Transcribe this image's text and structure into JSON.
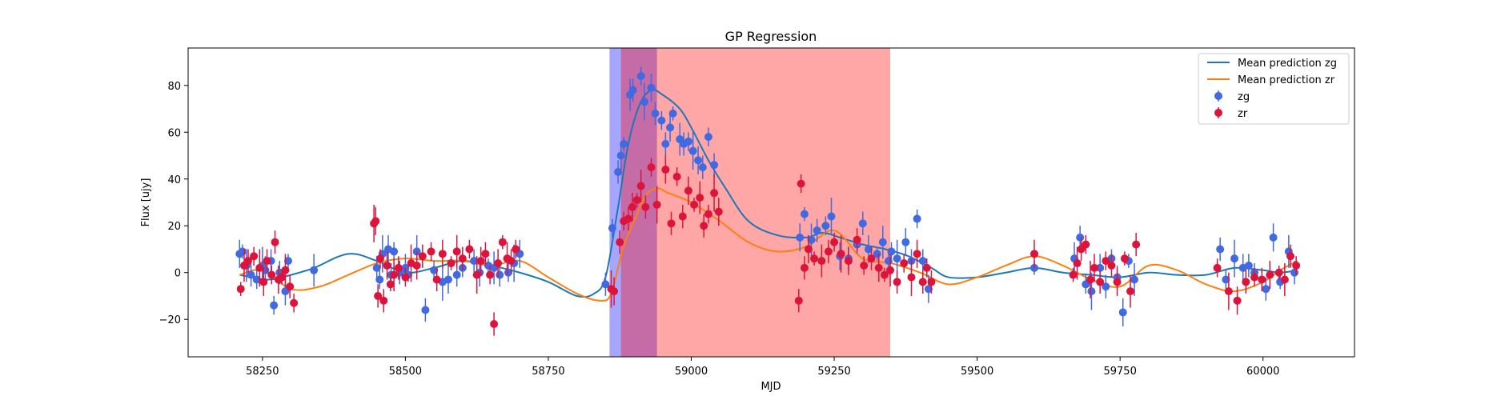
{
  "chart_data": {
    "type": "scatter",
    "title": "GP Regression",
    "xlabel": "MJD",
    "ylabel": "Flux [ujy]",
    "xlim": [
      58120,
      60160
    ],
    "ylim": [
      -36,
      96
    ],
    "xticks": [
      58250,
      58500,
      58750,
      59000,
      59250,
      59500,
      59750,
      60000
    ],
    "yticks": [
      -20,
      0,
      20,
      40,
      60,
      80
    ],
    "grid": false,
    "legend_position": "top-right",
    "colors": {
      "zg_line": "#1f77b4",
      "zr_line": "#ff7f0e",
      "zg_points": "#4169e1",
      "zr_points": "#dc143c",
      "span_blue": "#0000ff",
      "span_red": "#ff0000",
      "span_overlap": "#c06090"
    },
    "shaded_regions": [
      {
        "x0": 58857,
        "x1": 58940,
        "color": "#0000ff",
        "alpha": 0.35
      },
      {
        "x0": 58877,
        "x1": 59348,
        "color": "#ff0000",
        "alpha": 0.35
      }
    ],
    "series": [
      {
        "name": "Mean prediction zg",
        "kind": "line",
        "color": "#1f77b4",
        "x": [
          58210,
          58260,
          58300,
          58340,
          58400,
          58450,
          58500,
          58550,
          58600,
          58650,
          58700,
          58750,
          58800,
          58830,
          58850,
          58870,
          58890,
          58910,
          58930,
          58950,
          58980,
          59000,
          59030,
          59060,
          59100,
          59150,
          59200,
          59230,
          59260,
          59300,
          59340,
          59380,
          59420,
          59450,
          59500,
          59550,
          59600,
          59650,
          59700,
          59750,
          59800,
          59850,
          59900,
          59950,
          60000,
          60030,
          60060
        ],
        "y": [
          -1,
          -3,
          -1,
          2,
          8,
          5,
          0,
          2,
          5,
          3,
          0,
          -4,
          -10,
          -9,
          -2,
          25,
          55,
          72,
          78,
          76,
          70,
          62,
          48,
          36,
          22,
          16,
          15,
          17,
          15,
          12,
          10,
          7,
          2,
          -2,
          -2,
          0,
          2,
          0,
          -1,
          -2,
          0,
          -1,
          -1,
          2,
          1,
          0,
          1
        ]
      },
      {
        "name": "Mean prediction zr",
        "kind": "line",
        "color": "#ff7f0e",
        "x": [
          58210,
          58250,
          58300,
          58350,
          58400,
          58450,
          58500,
          58550,
          58600,
          58650,
          58700,
          58750,
          58800,
          58840,
          58860,
          58880,
          58900,
          58920,
          58940,
          58960,
          59000,
          59050,
          59100,
          59150,
          59200,
          59250,
          59300,
          59350,
          59400,
          59450,
          59500,
          59550,
          59600,
          59650,
          59700,
          59750,
          59800,
          59850,
          59900,
          59950,
          60000,
          60030,
          60060
        ],
        "y": [
          -1,
          1,
          -7,
          -6,
          -1,
          4,
          6,
          5,
          5,
          3,
          5,
          -2,
          -9,
          -12,
          -9,
          10,
          22,
          33,
          36,
          34,
          30,
          22,
          13,
          9,
          11,
          18,
          6,
          4,
          0,
          -5,
          -2,
          3,
          7,
          3,
          -3,
          -6,
          3,
          1,
          -5,
          -8,
          -4,
          1,
          5
        ]
      },
      {
        "name": "zg",
        "kind": "errorbar",
        "color": "#4169e1",
        "x": [
          58210,
          58215,
          58222,
          58230,
          58240,
          58250,
          58255,
          58265,
          58270,
          58280,
          58290,
          58295,
          58340,
          58450,
          58455,
          58460,
          58470,
          58475,
          58480,
          58490,
          58500,
          58505,
          58520,
          58535,
          58550,
          58565,
          58575,
          58590,
          58600,
          58620,
          58630,
          58645,
          58655,
          58665,
          58680,
          58690,
          58700,
          58850,
          58862,
          58872,
          58877,
          58882,
          58893,
          58898,
          58912,
          58918,
          58930,
          58937,
          58948,
          58955,
          58963,
          58968,
          58980,
          58987,
          58995,
          59003,
          59012,
          59020,
          59030,
          59040,
          59190,
          59198,
          59210,
          59220,
          59235,
          59245,
          59260,
          59275,
          59290,
          59300,
          59310,
          59325,
          59335,
          59345,
          59350,
          59360,
          59375,
          59385,
          59395,
          59405,
          59415,
          59600,
          59670,
          59680,
          59690,
          59700,
          59715,
          59725,
          59735,
          59745,
          59755,
          59765,
          59775,
          59925,
          59935,
          59950,
          59965,
          59975,
          59985,
          60005,
          60018,
          60030,
          60045,
          60055
        ],
        "y": [
          8,
          9,
          3,
          -1,
          -3,
          3,
          1,
          5,
          -14,
          0,
          -8,
          5,
          1,
          2,
          -3,
          8,
          10,
          -1,
          9,
          0,
          2,
          -1,
          9,
          -16,
          1,
          -4,
          -3,
          -1,
          2,
          5,
          0,
          3,
          2,
          -1,
          0,
          4,
          8,
          -5,
          19,
          43,
          50,
          55,
          76,
          78,
          84,
          73,
          79,
          68,
          65,
          55,
          62,
          68,
          57,
          55,
          56,
          52,
          48,
          45,
          58,
          46,
          15,
          25,
          14,
          18,
          20,
          24,
          7,
          6,
          12,
          21,
          10,
          8,
          13,
          5,
          9,
          6,
          13,
          5,
          23,
          5,
          -7,
          2,
          6,
          15,
          -5,
          -8,
          2,
          -6,
          6,
          -2,
          -17,
          5,
          -3,
          10,
          -3,
          6,
          2,
          3,
          0,
          -7,
          15,
          -4,
          9,
          0
        ]
      },
      {
        "name": "zr",
        "kind": "errorbar",
        "color": "#dc143c",
        "x": [
          58212,
          58218,
          58225,
          58235,
          58245,
          58252,
          58258,
          58266,
          58272,
          58278,
          58284,
          58290,
          58298,
          58305,
          58445,
          58448,
          58452,
          58456,
          58462,
          58468,
          58474,
          58480,
          58488,
          58500,
          58510,
          58520,
          58530,
          58545,
          58555,
          58565,
          58580,
          58590,
          58600,
          58612,
          58625,
          58632,
          58640,
          58648,
          58655,
          58662,
          58670,
          58678,
          58685,
          58693,
          58860,
          58865,
          58875,
          58882,
          58890,
          58897,
          58905,
          58912,
          58920,
          58930,
          58940,
          58955,
          58965,
          58975,
          58985,
          58995,
          59005,
          59015,
          59022,
          59030,
          59040,
          59048,
          59188,
          59192,
          59198,
          59205,
          59215,
          59228,
          59240,
          59250,
          59262,
          59275,
          59290,
          59302,
          59315,
          59328,
          59338,
          59348,
          59360,
          59372,
          59385,
          59395,
          59405,
          59412,
          59420,
          59600,
          59668,
          59675,
          59682,
          59690,
          59698,
          59705,
          59715,
          59725,
          59735,
          59745,
          59758,
          59768,
          59778,
          59920,
          59940,
          59955,
          59970,
          59985,
          59998,
          60012,
          60028,
          60038,
          60048,
          60058
        ],
        "y": [
          -7,
          3,
          5,
          7,
          2,
          -4,
          5,
          -1,
          13,
          -3,
          -2,
          1,
          -6,
          -13,
          21,
          22,
          -10,
          6,
          -12,
          3,
          -5,
          -1,
          2,
          -2,
          4,
          3,
          7,
          9,
          -3,
          8,
          4,
          9,
          6,
          10,
          -1,
          5,
          8,
          -1,
          -22,
          4,
          13,
          6,
          5,
          10,
          -7,
          -8,
          13,
          22,
          23,
          28,
          31,
          37,
          28,
          45,
          29,
          44,
          21,
          41,
          24,
          35,
          29,
          32,
          20,
          25,
          34,
          26,
          -12,
          38,
          2,
          10,
          6,
          5,
          9,
          13,
          8,
          5,
          14,
          3,
          6,
          2,
          -1,
          1,
          -4,
          4,
          -2,
          8,
          -4,
          2,
          -4,
          8,
          -1,
          4,
          10,
          12,
          -3,
          2,
          -4,
          5,
          3,
          -4,
          6,
          -8,
          12,
          2,
          -8,
          -12,
          -4,
          -2,
          -3,
          -1,
          0,
          -3,
          7,
          3
        ]
      }
    ]
  }
}
